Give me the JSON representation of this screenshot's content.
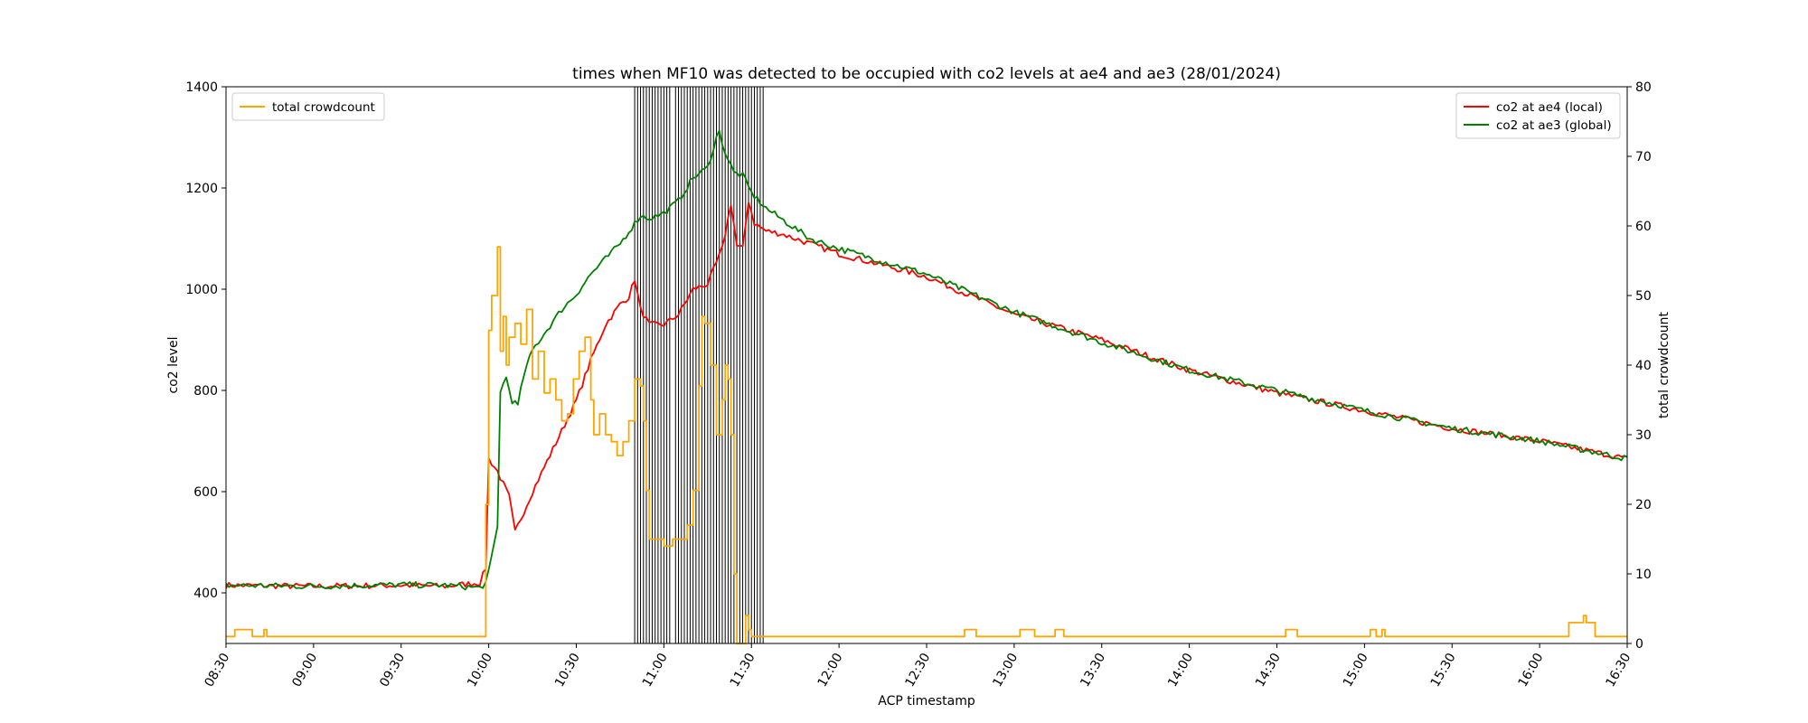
{
  "chart_data": {
    "type": "line",
    "title": "times when MF10 was detected to be occupied with co2 levels at ae4 and ae3     (28/01/2024)",
    "xlabel": "ACP timestamp",
    "ylabel_left": "co2 level",
    "ylabel_right": "total crowdcount",
    "x_range": [
      "08:30",
      "16:30"
    ],
    "ylim_left": [
      300,
      1400
    ],
    "ylim_right": [
      0,
      80
    ],
    "x_ticks": [
      "08:30",
      "09:00",
      "09:30",
      "10:00",
      "10:30",
      "11:00",
      "11:30",
      "12:00",
      "12:30",
      "13:00",
      "13:30",
      "14:00",
      "14:30",
      "15:00",
      "15:30",
      "16:00",
      "16:30"
    ],
    "y_ticks_left": [
      400,
      600,
      800,
      1000,
      1200,
      1400
    ],
    "y_ticks_right": [
      0,
      10,
      20,
      30,
      40,
      50,
      60,
      70,
      80
    ],
    "grid": false,
    "legends": [
      {
        "placement": "upper-left",
        "entries": [
          {
            "name": "total crowdcount",
            "color": "#ffa500"
          }
        ]
      },
      {
        "placement": "upper-right",
        "entries": [
          {
            "name": "co2 at ae4 (local)",
            "color": "#ff0000"
          },
          {
            "name": "co2 at ae3 (global)",
            "color": "#008000"
          }
        ]
      }
    ],
    "series": [
      {
        "name": "co2 at ae4 (local)",
        "axis": "left",
        "color": "#ff0000",
        "noise": 6,
        "points": [
          [
            "08:30",
            415
          ],
          [
            "09:00",
            413
          ],
          [
            "09:30",
            415
          ],
          [
            "09:45",
            413
          ],
          [
            "09:57",
            420
          ],
          [
            "09:59",
            450
          ],
          [
            "10:00",
            665
          ],
          [
            "10:03",
            640
          ],
          [
            "10:07",
            590
          ],
          [
            "10:09",
            520
          ],
          [
            "10:15",
            600
          ],
          [
            "10:20",
            660
          ],
          [
            "10:25",
            720
          ],
          [
            "10:30",
            780
          ],
          [
            "10:35",
            860
          ],
          [
            "10:40",
            930
          ],
          [
            "10:45",
            970
          ],
          [
            "10:48",
            985
          ],
          [
            "10:50",
            1020
          ],
          [
            "10:52",
            960
          ],
          [
            "10:55",
            930
          ],
          [
            "11:00",
            930
          ],
          [
            "11:05",
            950
          ],
          [
            "11:10",
            1000
          ],
          [
            "11:15",
            1010
          ],
          [
            "11:20",
            1080
          ],
          [
            "11:23",
            1170
          ],
          [
            "11:25",
            1085
          ],
          [
            "11:27",
            1080
          ],
          [
            "11:29",
            1175
          ],
          [
            "11:31",
            1130
          ],
          [
            "11:35",
            1115
          ],
          [
            "11:40",
            1110
          ],
          [
            "11:45",
            1100
          ],
          [
            "11:50",
            1090
          ],
          [
            "12:00",
            1070
          ],
          [
            "12:30",
            1025
          ],
          [
            "13:00",
            950
          ],
          [
            "13:30",
            900
          ],
          [
            "14:00",
            840
          ],
          [
            "14:30",
            795
          ],
          [
            "15:00",
            760
          ],
          [
            "15:30",
            725
          ],
          [
            "16:00",
            700
          ],
          [
            "16:30",
            665
          ]
        ]
      },
      {
        "name": "co2 at ae3 (global)",
        "axis": "left",
        "color": "#008000",
        "noise": 6,
        "points": [
          [
            "08:30",
            415
          ],
          [
            "09:00",
            413
          ],
          [
            "09:30",
            416
          ],
          [
            "09:45",
            415
          ],
          [
            "09:57",
            410
          ],
          [
            "09:59",
            420
          ],
          [
            "10:00",
            440
          ],
          [
            "10:03",
            530
          ],
          [
            "10:04",
            800
          ],
          [
            "10:06",
            825
          ],
          [
            "10:08",
            780
          ],
          [
            "10:10",
            770
          ],
          [
            "10:12",
            830
          ],
          [
            "10:15",
            880
          ],
          [
            "10:20",
            920
          ],
          [
            "10:25",
            960
          ],
          [
            "10:30",
            990
          ],
          [
            "10:35",
            1030
          ],
          [
            "10:40",
            1060
          ],
          [
            "10:45",
            1090
          ],
          [
            "10:50",
            1130
          ],
          [
            "10:52",
            1145
          ],
          [
            "10:55",
            1140
          ],
          [
            "11:00",
            1150
          ],
          [
            "11:05",
            1175
          ],
          [
            "11:10",
            1220
          ],
          [
            "11:15",
            1240
          ],
          [
            "11:18",
            1300
          ],
          [
            "11:19",
            1310
          ],
          [
            "11:21",
            1270
          ],
          [
            "11:24",
            1230
          ],
          [
            "11:27",
            1225
          ],
          [
            "11:30",
            1190
          ],
          [
            "11:35",
            1160
          ],
          [
            "11:40",
            1140
          ],
          [
            "11:45",
            1120
          ],
          [
            "11:50",
            1100
          ],
          [
            "12:00",
            1080
          ],
          [
            "12:30",
            1030
          ],
          [
            "13:00",
            955
          ],
          [
            "13:30",
            895
          ],
          [
            "14:00",
            840
          ],
          [
            "14:30",
            800
          ],
          [
            "15:00",
            760
          ],
          [
            "15:30",
            725
          ],
          [
            "16:00",
            700
          ],
          [
            "16:30",
            665
          ]
        ]
      },
      {
        "name": "total crowdcount",
        "axis": "right",
        "color": "#ffa500",
        "step": true,
        "points": [
          [
            "08:30",
            1
          ],
          [
            "08:33",
            2
          ],
          [
            "08:39",
            1
          ],
          [
            "08:41",
            1
          ],
          [
            "08:43",
            2
          ],
          [
            "08:44",
            1
          ],
          [
            "09:58",
            1
          ],
          [
            "09:59",
            20
          ],
          [
            "10:00",
            45
          ],
          [
            "10:01",
            50
          ],
          [
            "10:03",
            57
          ],
          [
            "10:04",
            42
          ],
          [
            "10:05",
            47
          ],
          [
            "10:06",
            40
          ],
          [
            "10:07",
            44
          ],
          [
            "10:09",
            46
          ],
          [
            "10:11",
            43
          ],
          [
            "10:13",
            48
          ],
          [
            "10:15",
            38
          ],
          [
            "10:17",
            42
          ],
          [
            "10:19",
            36
          ],
          [
            "10:21",
            38
          ],
          [
            "10:23",
            35
          ],
          [
            "10:25",
            32
          ],
          [
            "10:27",
            33
          ],
          [
            "10:29",
            38
          ],
          [
            "10:31",
            42
          ],
          [
            "10:33",
            44
          ],
          [
            "10:35",
            35
          ],
          [
            "10:36",
            30
          ],
          [
            "10:38",
            33
          ],
          [
            "10:40",
            30
          ],
          [
            "10:42",
            29
          ],
          [
            "10:44",
            27
          ],
          [
            "10:46",
            29
          ],
          [
            "10:48",
            32
          ],
          [
            "10:50",
            38
          ],
          [
            "10:52",
            37
          ],
          [
            "10:53",
            32
          ],
          [
            "10:54",
            22
          ],
          [
            "10:55",
            15
          ],
          [
            "10:58",
            15
          ],
          [
            "11:00",
            14
          ],
          [
            "11:03",
            15
          ],
          [
            "11:06",
            15
          ],
          [
            "11:08",
            17
          ],
          [
            "11:10",
            22
          ],
          [
            "11:12",
            37
          ],
          [
            "11:13",
            47
          ],
          [
            "11:14",
            46
          ],
          [
            "11:16",
            40
          ],
          [
            "11:18",
            30
          ],
          [
            "11:20",
            35
          ],
          [
            "11:21",
            40
          ],
          [
            "11:22",
            38
          ],
          [
            "11:23",
            30
          ],
          [
            "11:24",
            10
          ],
          [
            "11:25",
            0
          ],
          [
            "11:27",
            0
          ],
          [
            "11:28",
            4
          ],
          [
            "11:29",
            2
          ],
          [
            "11:30",
            1
          ],
          [
            "12:43",
            1
          ],
          [
            "12:43",
            2
          ],
          [
            "12:47",
            1
          ],
          [
            "13:00",
            1
          ],
          [
            "13:02",
            2
          ],
          [
            "13:07",
            1
          ],
          [
            "13:14",
            2
          ],
          [
            "13:17",
            1
          ],
          [
            "14:33",
            1
          ],
          [
            "14:33",
            2
          ],
          [
            "14:37",
            1
          ],
          [
            "15:02",
            1
          ],
          [
            "15:02",
            2
          ],
          [
            "15:04",
            1
          ],
          [
            "15:06",
            2
          ],
          [
            "15:07",
            1
          ],
          [
            "16:10",
            1
          ],
          [
            "16:10",
            3
          ],
          [
            "16:15",
            4
          ],
          [
            "16:16",
            3
          ],
          [
            "16:19",
            1
          ],
          [
            "16:30",
            1
          ]
        ]
      }
    ],
    "occupancy_color": "#000000",
    "occupancy_marks": [
      "10:50",
      "10:51",
      "10:52",
      "10:53",
      "10:54",
      "10:55",
      "10:56",
      "10:57",
      "10:58",
      "10:59",
      "11:00",
      "11:01",
      "11:02",
      "11:04",
      "11:05",
      "11:06",
      "11:07",
      "11:08",
      "11:09",
      "11:10",
      "11:11",
      "11:12",
      "11:13",
      "11:14",
      "11:15",
      "11:16",
      "11:17",
      "11:18",
      "11:19",
      "11:20",
      "11:21",
      "11:22",
      "11:23",
      "11:24",
      "11:25",
      "11:26",
      "11:27",
      "11:28",
      "11:29",
      "11:30",
      "11:31",
      "11:32",
      "11:33",
      "11:34"
    ]
  }
}
